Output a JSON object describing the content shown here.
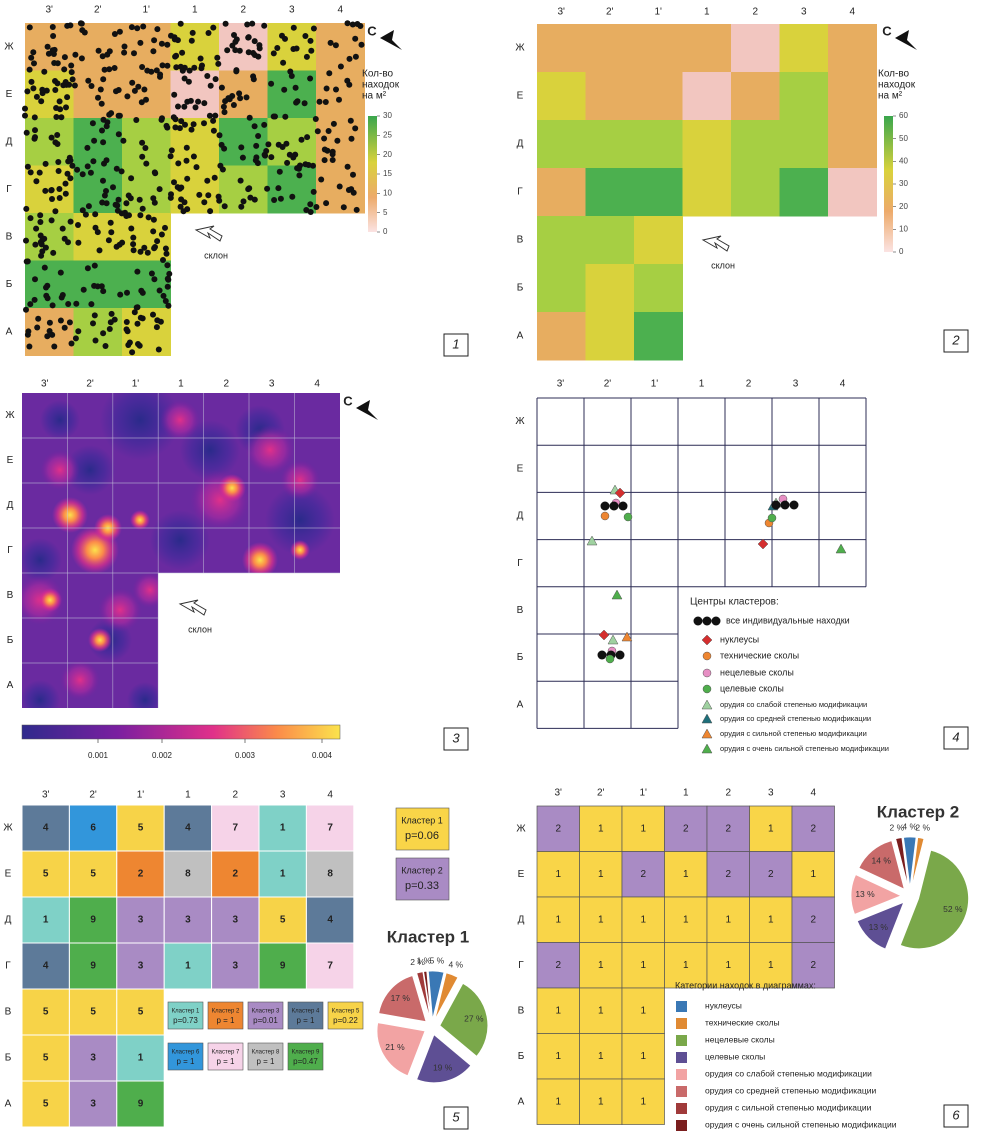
{
  "cols": [
    "3'",
    "2'",
    "1'",
    "1",
    "2",
    "3",
    "4"
  ],
  "rows": [
    "Ж",
    "Е",
    "Д",
    "Г",
    "В",
    "Б",
    "А"
  ],
  "north": "С",
  "slope": "склон",
  "density_title_lines": [
    "Кол-во",
    "находок",
    "на м²"
  ],
  "panel_numbers": [
    "1",
    "2",
    "3",
    "4",
    "5",
    "6"
  ],
  "colors": {
    "pink": "#f2c6c0",
    "orange": "#e7ad60",
    "yellow": "#d9d23c",
    "lime": "#a6cf43",
    "green": "#4cb04f",
    "heat_low": "#2f2a8c",
    "heat_mid": "#d4259c",
    "heat_high": "#fbe34c",
    "c1": "#7fd1c7",
    "c2": "#ee8631",
    "c3": "#a98bc4",
    "c4": "#5d7a99",
    "c5": "#f7d348",
    "c6": "#3296db",
    "c7": "#f6d3e8",
    "c8": "#c0c0c0",
    "c9": "#4fae4c",
    "k1": "#f9d548",
    "k2": "#a98bc4"
  },
  "panel1": {
    "legend_ticks": [
      "30",
      "25",
      "20",
      "15",
      "10",
      "5",
      "0"
    ],
    "grid": [
      [
        "orange",
        "orange",
        "orange",
        "yellow",
        "pink",
        "yellow",
        "orange"
      ],
      [
        "yellow",
        "orange",
        "orange",
        "pink",
        "orange",
        "green",
        "orange"
      ],
      [
        "lime",
        "green",
        "lime",
        "yellow",
        "green",
        "lime",
        "orange"
      ],
      [
        "yellow",
        "green",
        "lime",
        "yellow",
        "lime",
        "green",
        "orange"
      ],
      [
        "lime",
        "yellow",
        "yellow",
        null,
        null,
        null,
        null
      ],
      [
        "green",
        "green",
        "green",
        null,
        null,
        null,
        null
      ],
      [
        "orange",
        "lime",
        "yellow",
        null,
        null,
        null,
        null
      ]
    ]
  },
  "panel2": {
    "legend_ticks": [
      "60",
      "50",
      "40",
      "30",
      "20",
      "10",
      "0"
    ],
    "grid": [
      [
        "orange",
        "orange",
        "orange",
        "orange",
        "pink",
        "yellow",
        "orange"
      ],
      [
        "yellow",
        "orange",
        "orange",
        "pink",
        "orange",
        "lime",
        "orange"
      ],
      [
        "lime",
        "lime",
        "lime",
        "yellow",
        "lime",
        "lime",
        "orange"
      ],
      [
        "orange",
        "green",
        "green",
        "yellow",
        "lime",
        "green",
        "pink"
      ],
      [
        "lime",
        "lime",
        "yellow",
        null,
        null,
        null,
        null
      ],
      [
        "lime",
        "yellow",
        "lime",
        null,
        null,
        null,
        null
      ],
      [
        "orange",
        "yellow",
        "green",
        null,
        null,
        null,
        null
      ]
    ]
  },
  "panel3": {
    "ticks": [
      "0.001",
      "0.002",
      "0.003",
      "0.004"
    ]
  },
  "panel4": {
    "legend_title": "Центры кластеров:",
    "legend": [
      {
        "label": "все индивидуальные находки",
        "shape": "dots3",
        "color": "#111111"
      },
      {
        "label": "нуклеусы",
        "shape": "diamond",
        "color": "#d42f2f"
      },
      {
        "label": "технические сколы",
        "shape": "circle",
        "color": "#ee8631"
      },
      {
        "label": "нецелевые сколы",
        "shape": "circle",
        "color": "#e78fc4"
      },
      {
        "label": "целевые сколы",
        "shape": "circle",
        "color": "#4fae4c"
      },
      {
        "label": "орудия со слабой степенью модификации",
        "shape": "triangle",
        "color": "#9fd1a0"
      },
      {
        "label": "орудия со средней степенью модификации",
        "shape": "triangle",
        "color": "#1e6f7a"
      },
      {
        "label": "орудия с сильной степенью модификации",
        "shape": "triangle",
        "color": "#ee8631"
      },
      {
        "label": "орудия с очень сильной степенью модификации",
        "shape": "triangle",
        "color": "#4fae4c"
      }
    ]
  },
  "panel5": {
    "grid": [
      [
        4,
        6,
        5,
        4,
        7,
        1,
        7
      ],
      [
        5,
        5,
        2,
        8,
        2,
        1,
        8
      ],
      [
        1,
        9,
        3,
        3,
        3,
        5,
        4
      ],
      [
        4,
        9,
        3,
        1,
        3,
        9,
        7
      ],
      [
        5,
        5,
        5,
        null,
        null,
        null,
        null
      ],
      [
        5,
        3,
        1,
        null,
        null,
        null,
        null
      ],
      [
        5,
        3,
        9,
        null,
        null,
        null,
        null
      ]
    ],
    "big_legend": [
      {
        "name": "Кластер 1",
        "p": "p=0.06",
        "cls": "k1"
      },
      {
        "name": "Кластер 2",
        "p": "p=0.33",
        "cls": "k2"
      }
    ],
    "small_legend": [
      {
        "name": "Кластер 1",
        "p": "p=0.73",
        "cls": "c1"
      },
      {
        "name": "Кластер 2",
        "p": "p = 1",
        "cls": "c2"
      },
      {
        "name": "Кластер 3",
        "p": "p=0.01",
        "cls": "c3"
      },
      {
        "name": "Кластер 4",
        "p": "p = 1",
        "cls": "c4"
      },
      {
        "name": "Кластер 5",
        "p": "p=0.22",
        "cls": "c5"
      },
      {
        "name": "Кластер 6",
        "p": "p = 1",
        "cls": "c6"
      },
      {
        "name": "Кластер 7",
        "p": "p = 1",
        "cls": "c7"
      },
      {
        "name": "Кластер 8",
        "p": "p = 1",
        "cls": "c8"
      },
      {
        "name": "Кластер 9",
        "p": "p=0.47",
        "cls": "c9"
      }
    ],
    "pie_title": "Кластер 1",
    "pie": [
      {
        "value": 5,
        "label": "5 %",
        "color": "#3a78b5"
      },
      {
        "value": 4,
        "label": "4 %",
        "color": "#e08a33"
      },
      {
        "value": 27,
        "label": "27 %",
        "color": "#7aa84a"
      },
      {
        "value": 19,
        "label": "19 %",
        "color": "#5e4f94"
      },
      {
        "value": 21,
        "label": "21 %",
        "color": "#f2a3a3"
      },
      {
        "value": 17,
        "label": "17 %",
        "color": "#c96a6a"
      },
      {
        "value": 2,
        "label": "2 %",
        "color": "#a03a3a"
      },
      {
        "value": 1,
        "label": "1 %",
        "color": "#7a1e1e"
      }
    ]
  },
  "panel6": {
    "grid": [
      [
        2,
        1,
        1,
        2,
        2,
        1,
        2
      ],
      [
        1,
        1,
        2,
        1,
        2,
        2,
        1
      ],
      [
        1,
        1,
        1,
        1,
        1,
        1,
        2
      ],
      [
        2,
        1,
        1,
        1,
        1,
        1,
        2
      ],
      [
        1,
        1,
        1,
        null,
        null,
        null,
        null
      ],
      [
        1,
        1,
        1,
        null,
        null,
        null,
        null
      ],
      [
        1,
        1,
        1,
        null,
        null,
        null,
        null
      ]
    ],
    "legend_title": "Категории находок в диаграммах:",
    "legend": [
      {
        "label": "нуклеусы",
        "color": "#3a78b5"
      },
      {
        "label": "технические сколы",
        "color": "#e08a33"
      },
      {
        "label": "нецелевые сколы",
        "color": "#7aa84a"
      },
      {
        "label": "целевые сколы",
        "color": "#5e4f94"
      },
      {
        "label": "орудия со слабой степенью модификации",
        "color": "#f2a3a3"
      },
      {
        "label": "орудия со средней степенью модификации",
        "color": "#c96a6a"
      },
      {
        "label": "орудия с сильной степенью модификации",
        "color": "#a03a3a"
      },
      {
        "label": "орудия с очень сильной степенью модификации",
        "color": "#7a1e1e"
      }
    ],
    "pie_title": "Кластер 2",
    "pie": [
      {
        "value": 4,
        "label": "4 %",
        "color": "#3a78b5"
      },
      {
        "value": 2,
        "label": "2 %",
        "color": "#e08a33"
      },
      {
        "value": 52,
        "label": "52 %",
        "color": "#7aa84a"
      },
      {
        "value": 13,
        "label": "13 %",
        "color": "#5e4f94"
      },
      {
        "value": 13,
        "label": "13 %",
        "color": "#f2a3a3"
      },
      {
        "value": 14,
        "label": "14 %",
        "color": "#c96a6a"
      },
      {
        "value": 2,
        "label": "2 %",
        "color": "#7a1e1e"
      }
    ]
  }
}
